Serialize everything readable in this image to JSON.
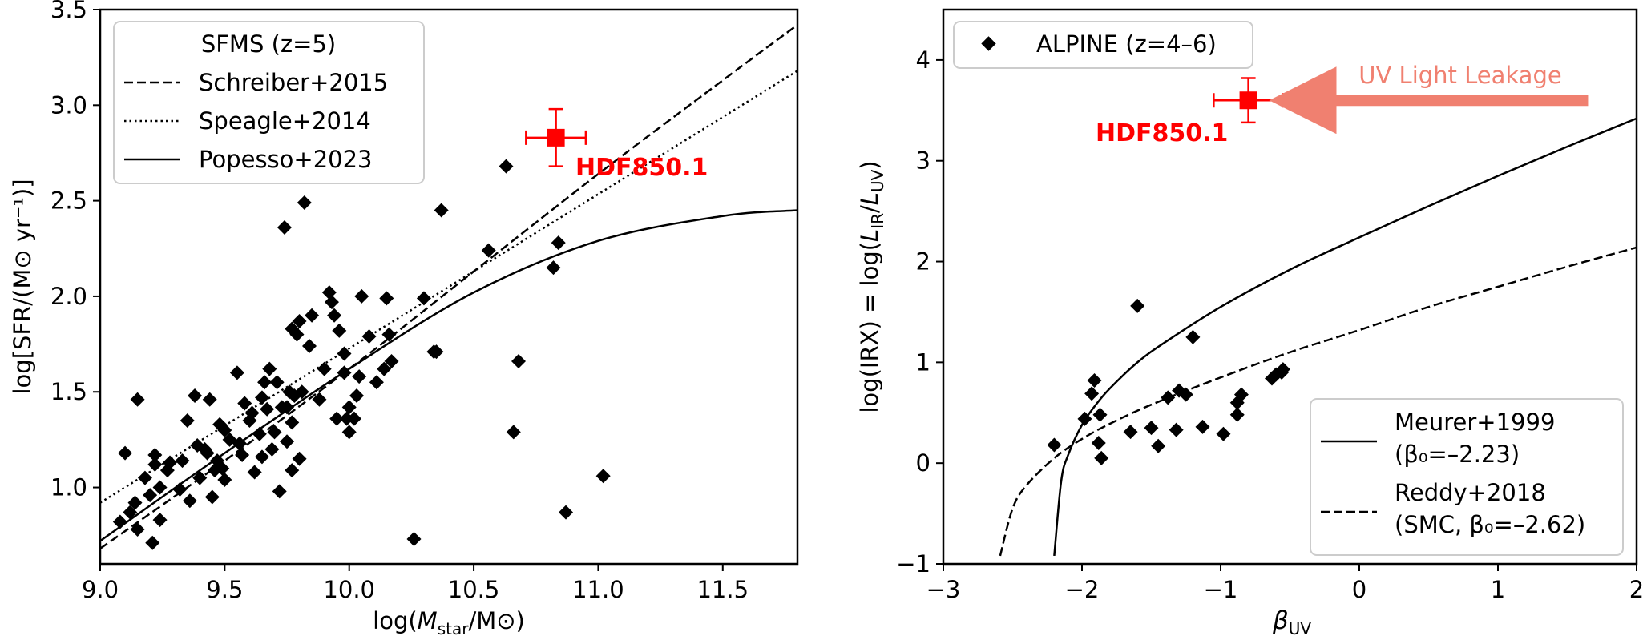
{
  "chart_data": [
    {
      "type": "scatter",
      "xlabel": {
        "pre": "log(",
        "var": "M",
        "sub": "star",
        "post": "/M⊙)"
      },
      "ylabel": "log[SFR/(M⊙ yr⁻¹)]",
      "xlim": [
        9.0,
        11.8
      ],
      "ylim": [
        0.6,
        3.5
      ],
      "xticks": [
        "9.0",
        "9.5",
        "10.0",
        "10.5",
        "11.0",
        "11.5"
      ],
      "yticks": [
        "1.0",
        "1.5",
        "2.0",
        "2.5",
        "3.0",
        "3.5"
      ],
      "legend": {
        "title": "SFMS (z=5)",
        "entries": [
          "Schreiber+2015",
          "Speagle+2014",
          "Popesso+2023"
        ],
        "placement": "top-left"
      },
      "highlight": {
        "label": "HDF850.1",
        "x": 10.83,
        "y": 2.83,
        "xerr": 0.12,
        "yerr": 0.15,
        "color": "#ff0000"
      },
      "curves": [
        {
          "name": "Schreiber+2015",
          "style": "dashed",
          "x": [
            9.0,
            9.5,
            10.0,
            10.5,
            11.0,
            11.5,
            11.8
          ],
          "y": [
            0.68,
            1.14,
            1.62,
            2.13,
            2.64,
            3.13,
            3.42
          ]
        },
        {
          "name": "Speagle+2014",
          "style": "dotted",
          "x": [
            9.0,
            11.8
          ],
          "y": [
            0.92,
            3.18
          ]
        },
        {
          "name": "Popesso+2023",
          "style": "solid",
          "x": [
            9.0,
            9.5,
            10.0,
            10.5,
            11.0,
            11.5,
            11.8
          ],
          "y": [
            0.72,
            1.18,
            1.62,
            2.02,
            2.29,
            2.42,
            2.45
          ]
        }
      ],
      "points": [
        [
          9.08,
          0.82
        ],
        [
          9.1,
          1.18
        ],
        [
          9.12,
          0.87
        ],
        [
          9.14,
          0.92
        ],
        [
          9.15,
          0.78
        ],
        [
          9.15,
          1.46
        ],
        [
          9.18,
          1.05
        ],
        [
          9.2,
          0.96
        ],
        [
          9.21,
          0.71
        ],
        [
          9.22,
          1.12
        ],
        [
          9.22,
          1.17
        ],
        [
          9.24,
          0.83
        ],
        [
          9.24,
          1.0
        ],
        [
          9.27,
          1.09
        ],
        [
          9.28,
          1.13
        ],
        [
          9.32,
          0.99
        ],
        [
          9.33,
          1.14
        ],
        [
          9.35,
          1.35
        ],
        [
          9.36,
          0.93
        ],
        [
          9.38,
          1.48
        ],
        [
          9.39,
          1.22
        ],
        [
          9.4,
          1.05
        ],
        [
          9.42,
          1.2
        ],
        [
          9.43,
          1.18
        ],
        [
          9.44,
          1.46
        ],
        [
          9.45,
          0.95
        ],
        [
          9.46,
          1.09
        ],
        [
          9.47,
          1.14
        ],
        [
          9.48,
          1.33
        ],
        [
          9.49,
          1.1
        ],
        [
          9.5,
          1.04
        ],
        [
          9.5,
          1.3
        ],
        [
          9.52,
          1.25
        ],
        [
          9.55,
          1.6
        ],
        [
          9.56,
          1.23
        ],
        [
          9.57,
          1.17
        ],
        [
          9.58,
          1.44
        ],
        [
          9.6,
          1.35
        ],
        [
          9.61,
          1.39
        ],
        [
          9.62,
          1.08
        ],
        [
          9.64,
          1.28
        ],
        [
          9.65,
          1.16
        ],
        [
          9.65,
          1.47
        ],
        [
          9.66,
          1.55
        ],
        [
          9.67,
          1.41
        ],
        [
          9.68,
          1.62
        ],
        [
          9.69,
          1.2
        ],
        [
          9.7,
          1.29
        ],
        [
          9.71,
          1.55
        ],
        [
          9.72,
          0.98
        ],
        [
          9.73,
          1.42
        ],
        [
          9.74,
          2.36
        ],
        [
          9.75,
          1.42
        ],
        [
          9.75,
          1.24
        ],
        [
          9.76,
          1.5
        ],
        [
          9.77,
          1.34
        ],
        [
          9.77,
          1.83
        ],
        [
          9.77,
          1.09
        ],
        [
          9.78,
          1.48
        ],
        [
          9.79,
          1.8
        ],
        [
          9.8,
          1.87
        ],
        [
          9.8,
          1.15
        ],
        [
          9.81,
          1.5
        ],
        [
          9.82,
          2.49
        ],
        [
          9.84,
          1.74
        ],
        [
          9.85,
          1.9
        ],
        [
          9.88,
          1.46
        ],
        [
          9.9,
          1.62
        ],
        [
          9.92,
          2.02
        ],
        [
          9.93,
          1.97
        ],
        [
          9.94,
          1.9
        ],
        [
          9.95,
          1.36
        ],
        [
          9.96,
          1.82
        ],
        [
          9.98,
          1.7
        ],
        [
          9.98,
          1.6
        ],
        [
          9.99,
          1.36
        ],
        [
          10.0,
          1.42
        ],
        [
          10.0,
          1.29
        ],
        [
          10.02,
          1.36
        ],
        [
          10.03,
          1.48
        ],
        [
          10.04,
          1.58
        ],
        [
          10.05,
          2.0
        ],
        [
          10.08,
          1.79
        ],
        [
          10.11,
          1.55
        ],
        [
          10.14,
          1.62
        ],
        [
          10.15,
          1.99
        ],
        [
          10.16,
          1.8
        ],
        [
          10.17,
          1.66
        ],
        [
          10.26,
          0.73
        ],
        [
          10.3,
          1.99
        ],
        [
          10.34,
          1.71
        ],
        [
          10.35,
          1.71
        ],
        [
          10.37,
          2.45
        ],
        [
          10.56,
          2.24
        ],
        [
          10.63,
          2.68
        ],
        [
          10.66,
          1.29
        ],
        [
          10.68,
          1.66
        ],
        [
          10.82,
          2.15
        ],
        [
          10.84,
          2.28
        ],
        [
          10.87,
          0.87
        ],
        [
          11.02,
          1.06
        ]
      ]
    },
    {
      "type": "scatter",
      "xlabel": {
        "var": "β",
        "sub": "UV"
      },
      "ylabel": {
        "pre": "log(IRX) = log(",
        "var1": "L",
        "sub1": "IR",
        "mid": "/",
        "var2": "L",
        "sub2": "UV",
        "post": ")"
      },
      "xlim": [
        -3,
        2
      ],
      "ylim": [
        -1,
        4.5
      ],
      "xticks": [
        "−3",
        "−2",
        "−1",
        "0",
        "1",
        "2"
      ],
      "yticks": [
        "−1",
        "0",
        "1",
        "2",
        "3",
        "4"
      ],
      "legend_top": {
        "entries": [
          "ALPINE (z=4–6)"
        ],
        "placement": "top-left"
      },
      "legend_bottom": {
        "placement": "bottom-right",
        "entries": [
          {
            "line1": "Meurer+1999",
            "line2": "(β₀=–2.23)",
            "style": "solid"
          },
          {
            "line1": "Reddy+2018",
            "line2": "(SMC, β₀=–2.62)",
            "style": "dashed"
          }
        ]
      },
      "highlight": {
        "label": "HDF850.1",
        "x": -0.8,
        "y": 3.6,
        "xerr": 0.25,
        "yerr": 0.22,
        "color": "#ff0000"
      },
      "annotation": {
        "text": "UV Light Leakage",
        "color": "#f08070",
        "arrow_from_x": 1.65,
        "arrow_to_x": -0.5,
        "y": 3.6
      },
      "curves": [
        {
          "name": "Meurer+1999",
          "style": "solid",
          "x": [
            -2.2,
            -2.15,
            -2.1,
            -2.0,
            -1.9,
            -1.8,
            -1.6,
            -1.4,
            -1.0,
            -0.5,
            0.0,
            0.5,
            1.0,
            1.5,
            2.0
          ],
          "y": [
            -0.92,
            -0.18,
            0.08,
            0.38,
            0.58,
            0.74,
            1.0,
            1.2,
            1.55,
            1.92,
            2.24,
            2.55,
            2.85,
            3.14,
            3.42
          ]
        },
        {
          "name": "Reddy+2018",
          "style": "dashed",
          "x": [
            -2.59,
            -2.5,
            -2.4,
            -2.2,
            -2.0,
            -1.8,
            -1.5,
            -1.0,
            -0.5,
            0.0,
            0.5,
            1.0,
            1.5,
            2.0
          ],
          "y": [
            -0.92,
            -0.45,
            -0.22,
            0.05,
            0.24,
            0.39,
            0.58,
            0.85,
            1.1,
            1.32,
            1.55,
            1.75,
            1.95,
            2.14
          ]
        }
      ],
      "points": [
        [
          -2.2,
          0.18
        ],
        [
          -1.98,
          0.44
        ],
        [
          -1.93,
          0.69
        ],
        [
          -1.91,
          0.82
        ],
        [
          -1.88,
          0.2
        ],
        [
          -1.87,
          0.48
        ],
        [
          -1.86,
          0.05
        ],
        [
          -1.65,
          0.31
        ],
        [
          -1.6,
          1.56
        ],
        [
          -1.5,
          0.35
        ],
        [
          -1.45,
          0.17
        ],
        [
          -1.38,
          0.65
        ],
        [
          -1.32,
          0.33
        ],
        [
          -1.3,
          0.72
        ],
        [
          -1.25,
          0.68
        ],
        [
          -1.2,
          1.25
        ],
        [
          -1.13,
          0.36
        ],
        [
          -0.98,
          0.29
        ],
        [
          -0.88,
          0.48
        ],
        [
          -0.88,
          0.6
        ],
        [
          -0.85,
          0.68
        ],
        [
          -0.63,
          0.84
        ],
        [
          -0.6,
          0.88
        ],
        [
          -0.56,
          0.9
        ],
        [
          -0.55,
          0.93
        ]
      ]
    }
  ]
}
